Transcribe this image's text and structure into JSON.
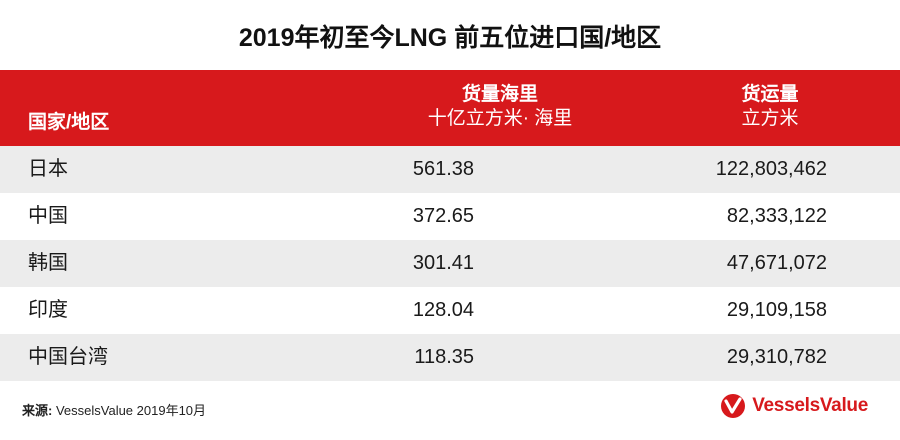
{
  "title": "2019年初至今LNG 前五位进口国/地区",
  "table": {
    "headers": {
      "country": "国家/地区",
      "nautical_miles": {
        "label": "货量海里",
        "unit": "十亿立方米· 海里"
      },
      "volume": {
        "label": "货运量",
        "unit": "立方米"
      }
    },
    "rows": [
      {
        "country": "日本",
        "nautical_miles": "561.38",
        "volume": "122,803,462"
      },
      {
        "country": "中国",
        "nautical_miles": "372.65",
        "volume": "82,333,122"
      },
      {
        "country": "韩国",
        "nautical_miles": "301.41",
        "volume": "47,671,072"
      },
      {
        "country": "印度",
        "nautical_miles": "128.04",
        "volume": "29,109,158"
      },
      {
        "country": "中国台湾",
        "nautical_miles": "118.35",
        "volume": "29,310,782"
      }
    ]
  },
  "source": {
    "label": "来源:",
    "text": " VesselsValue 2019年10月"
  },
  "logo": {
    "text": "VesselsValue",
    "icon": "vesselsvalue-logo-icon"
  },
  "colors": {
    "accent": "#d7191c",
    "row_alt": "#ececec"
  }
}
